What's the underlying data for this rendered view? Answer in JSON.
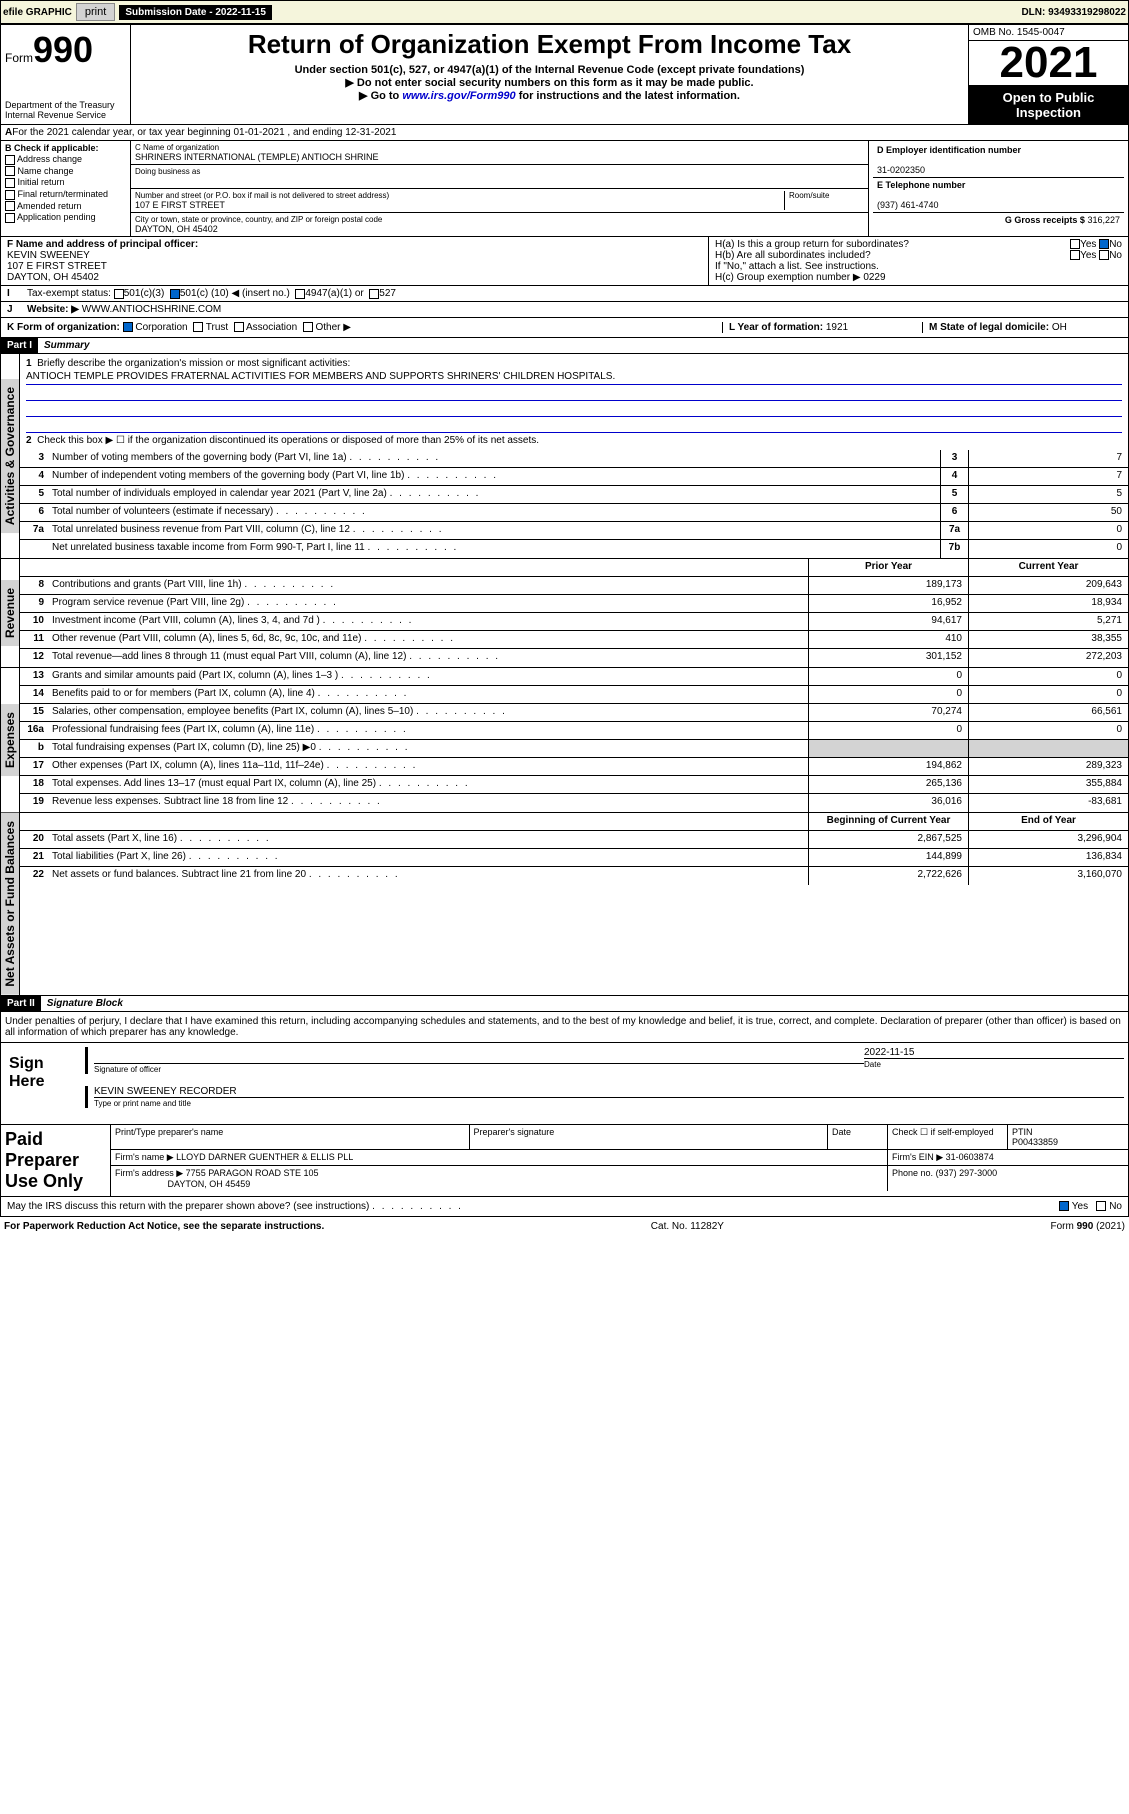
{
  "topbar": {
    "efile": "efile GRAPHIC",
    "print": "print",
    "submission_label": "Submission Date - ",
    "submission_date": "2022-11-15",
    "dln_label": "DLN: ",
    "dln": "93493319298022"
  },
  "header": {
    "form_word": "Form",
    "form_num": "990",
    "dept": "Department of the Treasury",
    "irs": "Internal Revenue Service",
    "title": "Return of Organization Exempt From Income Tax",
    "subtitle": "Under section 501(c), 527, or 4947(a)(1) of the Internal Revenue Code (except private foundations)",
    "note1": "▶ Do not enter social security numbers on this form as it may be made public.",
    "note2_pre": "▶ Go to ",
    "note2_link": "www.irs.gov/Form990",
    "note2_post": " for instructions and the latest information.",
    "omb": "OMB No. 1545-0047",
    "year": "2021",
    "inspection": "Open to Public Inspection"
  },
  "section_a": "For the 2021 calendar year, or tax year beginning 01-01-2021   , and ending 12-31-2021",
  "section_b": {
    "label": "B Check if applicable:",
    "items": [
      "Address change",
      "Name change",
      "Initial return",
      "Final return/terminated",
      "Amended return",
      "Application pending"
    ]
  },
  "section_c": {
    "name_label": "C Name of organization",
    "name": "SHRINERS INTERNATIONAL (TEMPLE) ANTIOCH SHRINE",
    "dba_label": "Doing business as",
    "street_label": "Number and street (or P.O. box if mail is not delivered to street address)",
    "room_label": "Room/suite",
    "street": "107 E FIRST STREET",
    "city_label": "City or town, state or province, country, and ZIP or foreign postal code",
    "city": "DAYTON, OH  45402"
  },
  "section_d": {
    "label": "D Employer identification number",
    "value": "31-0202350"
  },
  "section_e": {
    "label": "E Telephone number",
    "value": "(937) 461-4740"
  },
  "section_g": {
    "label": "G Gross receipts $",
    "value": "316,227"
  },
  "section_f": {
    "label": "F  Name and address of principal officer:",
    "name": "KEVIN SWEENEY",
    "street": "107 E FIRST STREET",
    "city": "DAYTON, OH  45402"
  },
  "section_h": {
    "ha": "H(a)  Is this a group return for subordinates?",
    "hb": "H(b)  Are all subordinates included?",
    "hb_note": "If \"No,\" attach a list. See instructions.",
    "hc": "H(c)  Group exemption number ▶",
    "hc_val": "0229",
    "yes": "Yes",
    "no": "No"
  },
  "section_i": {
    "label": "Tax-exempt status:",
    "c3": "501(c)(3)",
    "c_pre": "501(c) (",
    "c_num": "10",
    "c_post": ") ◀ (insert no.)",
    "a1": "4947(a)(1) or",
    "s527": "527"
  },
  "section_j": {
    "label": "Website: ▶",
    "value": "WWW.ANTIOCHSHRINE.COM"
  },
  "section_k": {
    "label": "K Form of organization:",
    "corp": "Corporation",
    "trust": "Trust",
    "assoc": "Association",
    "other": "Other ▶"
  },
  "section_l": {
    "label": "L Year of formation:",
    "value": "1921"
  },
  "section_m": {
    "label": "M State of legal domicile:",
    "value": "OH"
  },
  "part1": {
    "header": "Part I",
    "title": "Summary",
    "vlabels": {
      "gov": "Activities & Governance",
      "rev": "Revenue",
      "exp": "Expenses",
      "net": "Net Assets or Fund Balances"
    },
    "q1": "Briefly describe the organization's mission or most significant activities:",
    "mission": "ANTIOCH TEMPLE PROVIDES FRATERNAL ACTIVITIES FOR MEMBERS AND SUPPORTS SHRINERS' CHILDREN HOSPITALS.",
    "q2": "Check this box ▶ ☐  if the organization discontinued its operations or disposed of more than 25% of its net assets.",
    "lines_gov": [
      {
        "n": "3",
        "t": "Number of voting members of the governing body (Part VI, line 1a)",
        "box": "3",
        "v": "7"
      },
      {
        "n": "4",
        "t": "Number of independent voting members of the governing body (Part VI, line 1b)",
        "box": "4",
        "v": "7"
      },
      {
        "n": "5",
        "t": "Total number of individuals employed in calendar year 2021 (Part V, line 2a)",
        "box": "5",
        "v": "5"
      },
      {
        "n": "6",
        "t": "Total number of volunteers (estimate if necessary)",
        "box": "6",
        "v": "50"
      },
      {
        "n": "7a",
        "t": "Total unrelated business revenue from Part VIII, column (C), line 12",
        "box": "7a",
        "v": "0"
      },
      {
        "n": "",
        "t": "Net unrelated business taxable income from Form 990-T, Part I, line 11",
        "box": "7b",
        "v": "0"
      }
    ],
    "col_prior": "Prior Year",
    "col_current": "Current Year",
    "col_begin": "Beginning of Current Year",
    "col_end": "End of Year",
    "lines_rev": [
      {
        "n": "8",
        "t": "Contributions and grants (Part VIII, line 1h)",
        "p": "189,173",
        "c": "209,643"
      },
      {
        "n": "9",
        "t": "Program service revenue (Part VIII, line 2g)",
        "p": "16,952",
        "c": "18,934"
      },
      {
        "n": "10",
        "t": "Investment income (Part VIII, column (A), lines 3, 4, and 7d )",
        "p": "94,617",
        "c": "5,271"
      },
      {
        "n": "11",
        "t": "Other revenue (Part VIII, column (A), lines 5, 6d, 8c, 9c, 10c, and 11e)",
        "p": "410",
        "c": "38,355"
      },
      {
        "n": "12",
        "t": "Total revenue—add lines 8 through 11 (must equal Part VIII, column (A), line 12)",
        "p": "301,152",
        "c": "272,203"
      }
    ],
    "lines_exp": [
      {
        "n": "13",
        "t": "Grants and similar amounts paid (Part IX, column (A), lines 1–3 )",
        "p": "0",
        "c": "0"
      },
      {
        "n": "14",
        "t": "Benefits paid to or for members (Part IX, column (A), line 4)",
        "p": "0",
        "c": "0"
      },
      {
        "n": "15",
        "t": "Salaries, other compensation, employee benefits (Part IX, column (A), lines 5–10)",
        "p": "70,274",
        "c": "66,561"
      },
      {
        "n": "16a",
        "t": "Professional fundraising fees (Part IX, column (A), line 11e)",
        "p": "0",
        "c": "0"
      },
      {
        "n": "b",
        "t": "Total fundraising expenses (Part IX, column (D), line 25) ▶0",
        "p": "",
        "c": "",
        "grey": true
      },
      {
        "n": "17",
        "t": "Other expenses (Part IX, column (A), lines 11a–11d, 11f–24e)",
        "p": "194,862",
        "c": "289,323"
      },
      {
        "n": "18",
        "t": "Total expenses. Add lines 13–17 (must equal Part IX, column (A), line 25)",
        "p": "265,136",
        "c": "355,884"
      },
      {
        "n": "19",
        "t": "Revenue less expenses. Subtract line 18 from line 12",
        "p": "36,016",
        "c": "-83,681"
      }
    ],
    "lines_net": [
      {
        "n": "20",
        "t": "Total assets (Part X, line 16)",
        "p": "2,867,525",
        "c": "3,296,904"
      },
      {
        "n": "21",
        "t": "Total liabilities (Part X, line 26)",
        "p": "144,899",
        "c": "136,834"
      },
      {
        "n": "22",
        "t": "Net assets or fund balances. Subtract line 21 from line 20",
        "p": "2,722,626",
        "c": "3,160,070"
      }
    ]
  },
  "part2": {
    "header": "Part II",
    "title": "Signature Block",
    "penalties": "Under penalties of perjury, I declare that I have examined this return, including accompanying schedules and statements, and to the best of my knowledge and belief, it is true, correct, and complete. Declaration of preparer (other than officer) is based on all information of which preparer has any knowledge.",
    "sign_here": "Sign Here",
    "sig_officer": "Signature of officer",
    "date_label": "Date",
    "date_val": "2022-11-15",
    "officer_name": "KEVIN SWEENEY RECORDER",
    "type_name": "Type or print name and title"
  },
  "preparer": {
    "label": "Paid Preparer Use Only",
    "print_name": "Print/Type preparer's name",
    "sig": "Preparer's signature",
    "date": "Date",
    "check_if": "Check ☐ if self-employed",
    "ptin_label": "PTIN",
    "ptin": "P00433859",
    "firm_name_label": "Firm's name    ▶",
    "firm_name": "LLOYD DARNER GUENTHER & ELLIS PLL",
    "firm_ein_label": "Firm's EIN ▶",
    "firm_ein": "31-0603874",
    "firm_addr_label": "Firm's address ▶",
    "firm_addr1": "7755 PARAGON ROAD STE 105",
    "firm_addr2": "DAYTON, OH  45459",
    "phone_label": "Phone no.",
    "phone": "(937) 297-3000"
  },
  "discuss": {
    "text": "May the IRS discuss this return with the preparer shown above? (see instructions)",
    "yes": "Yes",
    "no": "No"
  },
  "footer": {
    "left": "For Paperwork Reduction Act Notice, see the separate instructions.",
    "mid": "Cat. No. 11282Y",
    "right_pre": "Form ",
    "right_num": "990",
    "right_post": " (2021)"
  }
}
